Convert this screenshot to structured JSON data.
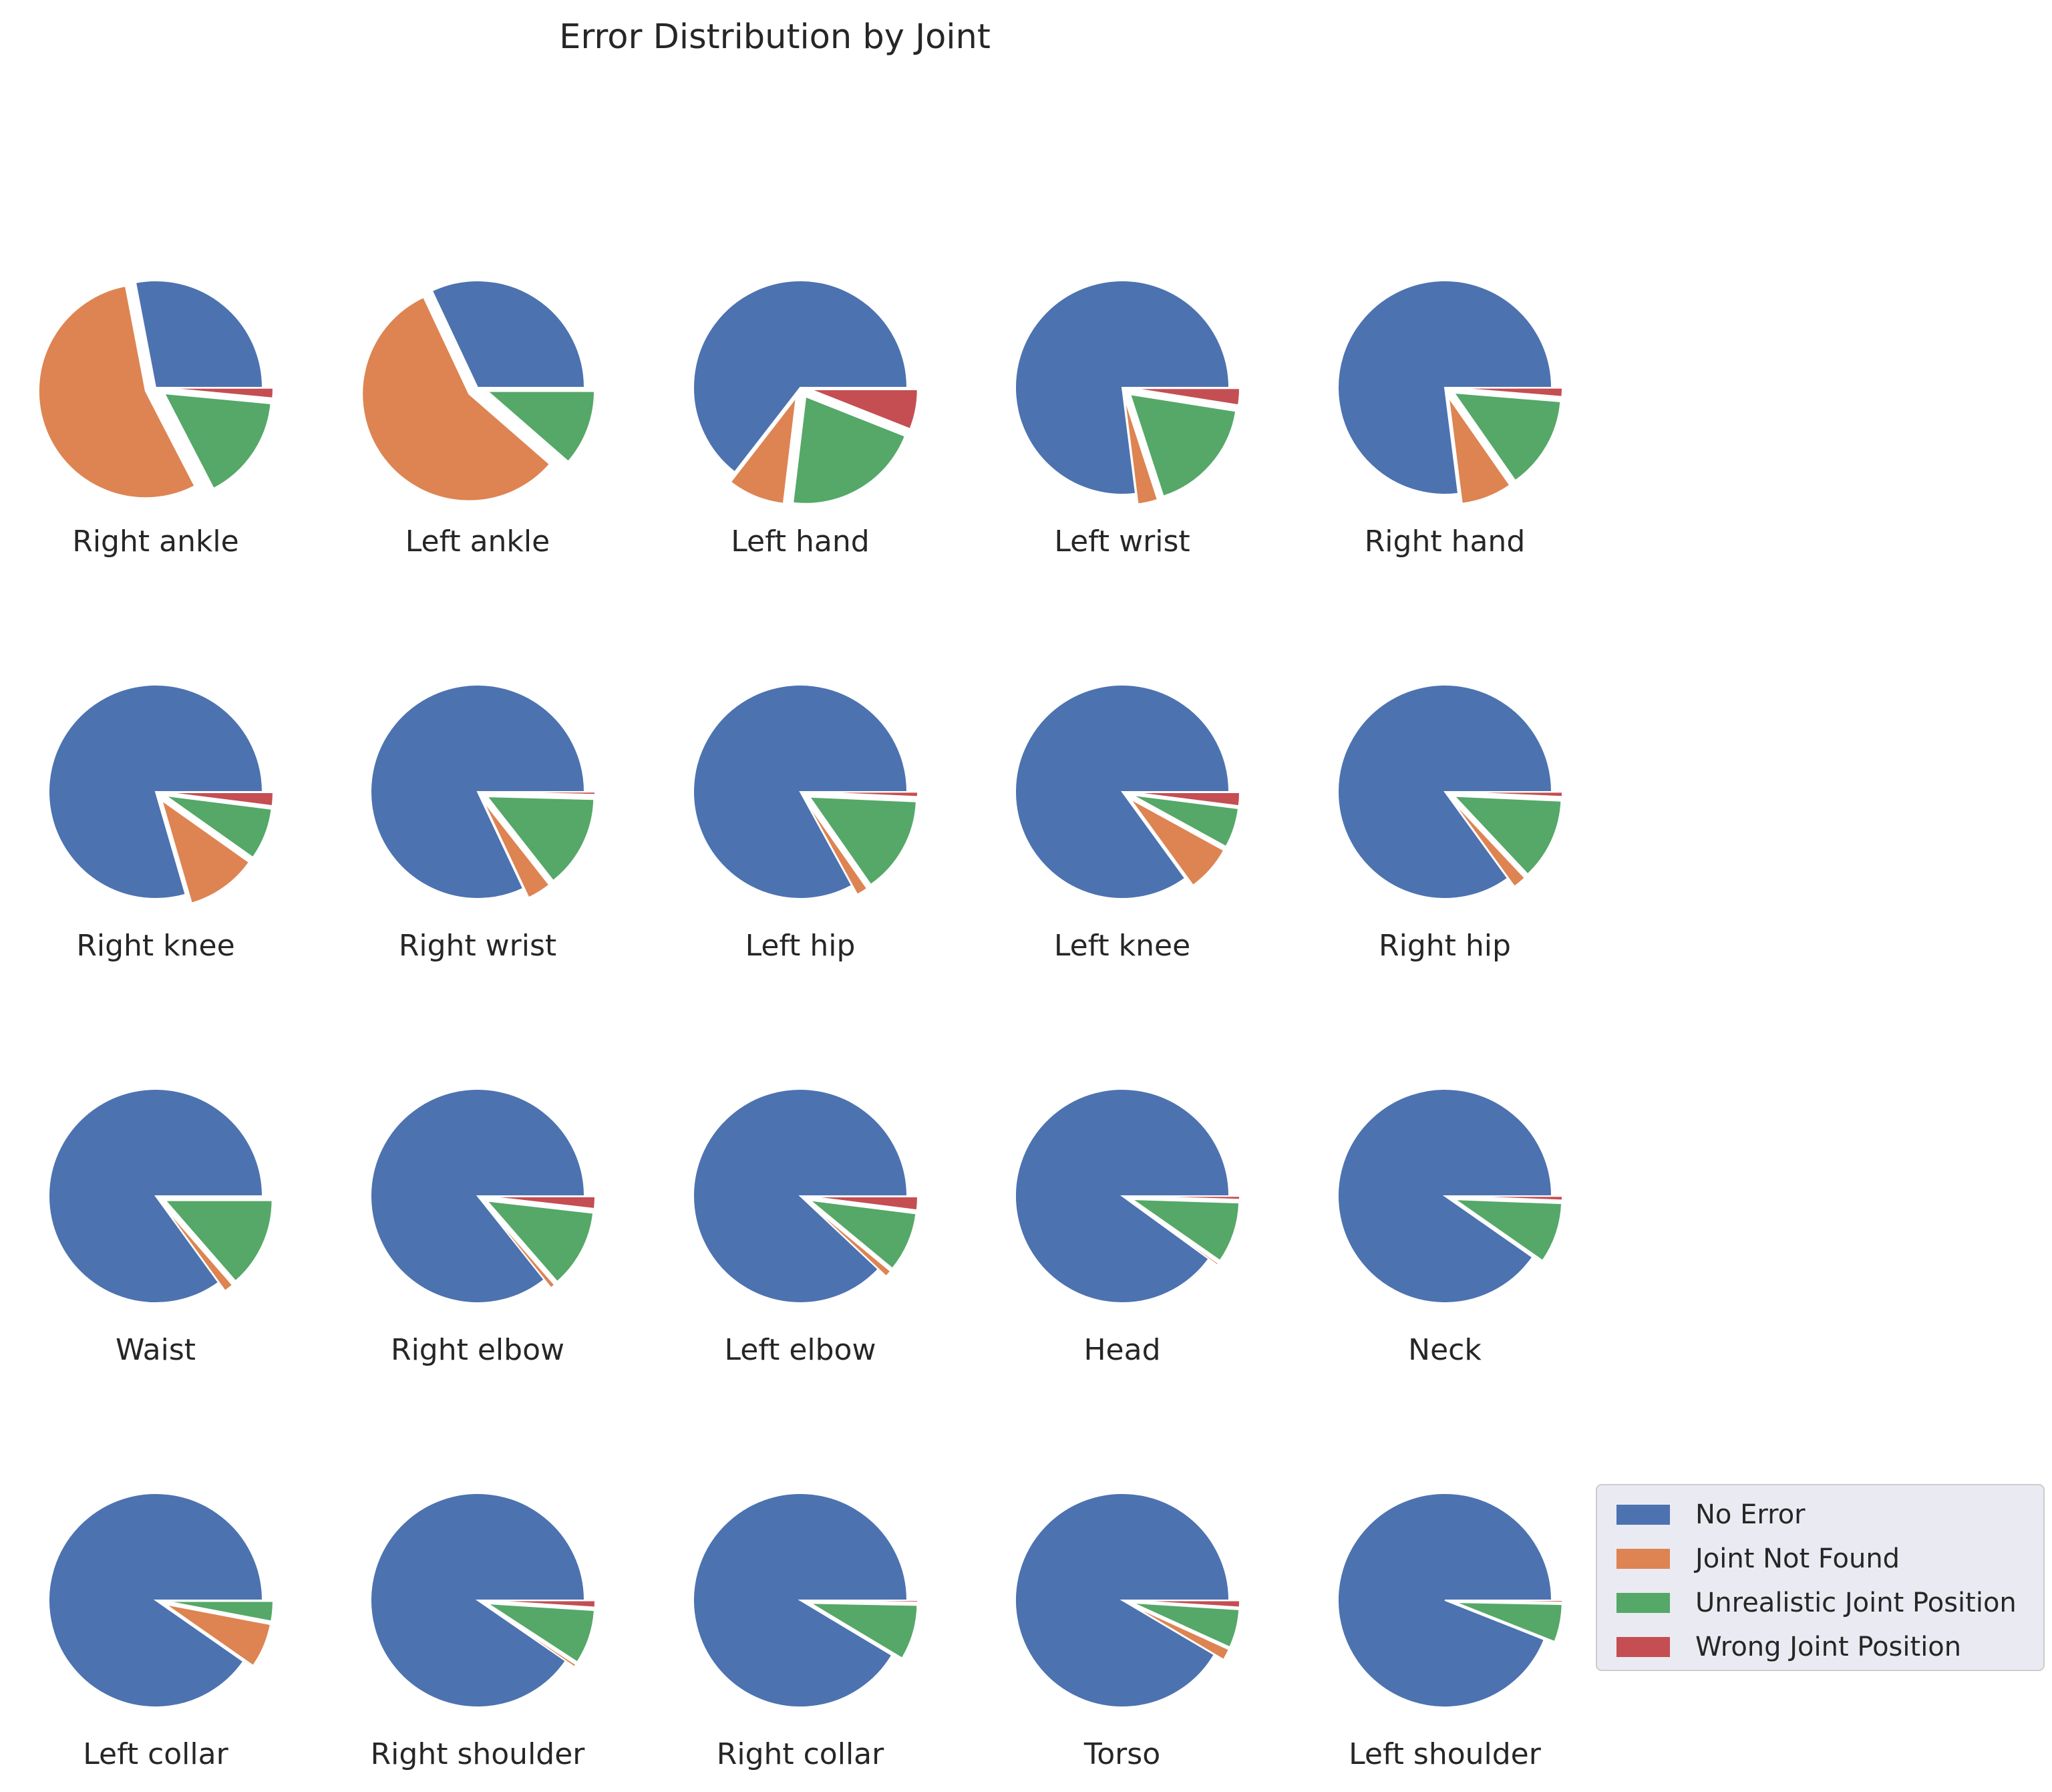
{
  "colors": {
    "No Error": "#4c72b0",
    "Joint Not Found": "#dd8452",
    "Unrealistic Joint Position": "#55a868",
    "Wrong Joint Position": "#c44e52"
  },
  "chart_data": {
    "type": "pie",
    "title": "Error Distribution by Joint",
    "categories": [
      "No Error",
      "Joint Not Found",
      "Unrealistic Joint Position",
      "Wrong Joint Position"
    ],
    "legend": {
      "placement": "lower-right",
      "entries": [
        "No Error",
        "Joint Not Found",
        "Unrealistic Joint Position",
        "Wrong Joint Position"
      ]
    },
    "grid": false,
    "pies": [
      {
        "name": "Right ankle",
        "values": [
          28.0,
          54.6,
          15.9,
          1.5
        ]
      },
      {
        "name": "Left ankle",
        "values": [
          32.0,
          56.6,
          11.4,
          0.0
        ]
      },
      {
        "name": "Left hand",
        "values": [
          64.5,
          8.6,
          20.9,
          6.0
        ]
      },
      {
        "name": "Left wrist",
        "values": [
          77.0,
          3.0,
          17.5,
          2.5
        ]
      },
      {
        "name": "Right hand",
        "values": [
          77.0,
          7.7,
          14.0,
          1.3
        ]
      },
      {
        "name": "Right knee",
        "values": [
          79.5,
          10.7,
          7.8,
          2.0
        ]
      },
      {
        "name": "Right wrist",
        "values": [
          82.0,
          3.6,
          14.0,
          0.4
        ]
      },
      {
        "name": "Left hip",
        "values": [
          83.0,
          1.7,
          14.6,
          0.7
        ]
      },
      {
        "name": "Left knee",
        "values": [
          85.0,
          7.0,
          6.0,
          2.0
        ]
      },
      {
        "name": "Right hip",
        "values": [
          85.0,
          2.0,
          12.3,
          0.7
        ]
      },
      {
        "name": "Waist",
        "values": [
          85.0,
          1.4,
          13.6,
          0.0
        ]
      },
      {
        "name": "Right elbow",
        "values": [
          85.7,
          0.7,
          11.8,
          1.8
        ]
      },
      {
        "name": "Left elbow",
        "values": [
          88.0,
          1.0,
          9.0,
          2.0
        ]
      },
      {
        "name": "Head",
        "values": [
          90.0,
          0.3,
          9.2,
          0.5
        ]
      },
      {
        "name": "Neck",
        "values": [
          90.3,
          0.0,
          9.1,
          0.6
        ]
      },
      {
        "name": "Left collar",
        "values": [
          90.3,
          6.7,
          3.0,
          0.0
        ]
      },
      {
        "name": "Right shoulder",
        "values": [
          90.4,
          0.4,
          8.2,
          1.0
        ]
      },
      {
        "name": "Right collar",
        "values": [
          91.4,
          0.0,
          8.3,
          0.3
        ]
      },
      {
        "name": "Torso",
        "values": [
          91.5,
          1.7,
          5.8,
          1.0
        ]
      },
      {
        "name": "Left shoulder",
        "values": [
          94.0,
          0.0,
          5.7,
          0.3
        ]
      }
    ]
  }
}
